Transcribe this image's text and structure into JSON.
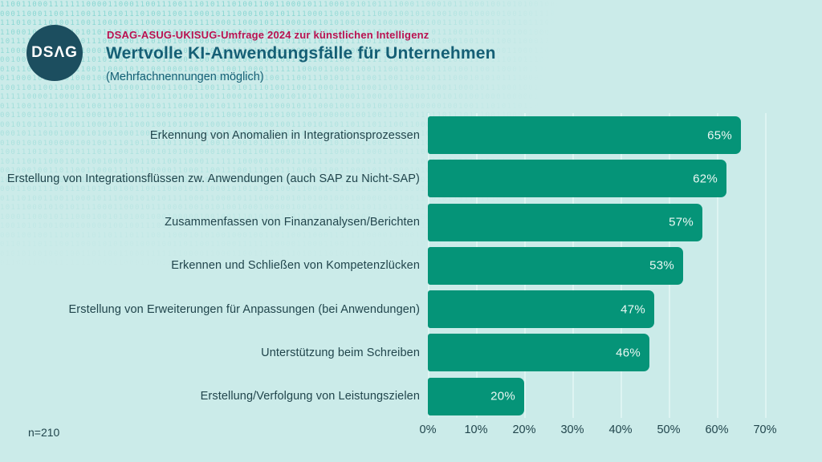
{
  "logo": {
    "text": "DSΛG"
  },
  "header": {
    "kicker": "DSAG-ASUG-UKISUG-Umfrage 2024 zur künstlichen Intelligenz",
    "title": "Wertvolle KI-Anwendungsfälle für Unternehmen",
    "subtitle": "(Mehrfachnennungen möglich)"
  },
  "meta": {
    "sample_size_label": "n=210"
  },
  "colors": {
    "background": "#cbebe9",
    "bar": "#059478",
    "kicker_red": "#b91150",
    "title_teal": "#155f75",
    "text_dark": "#21454c",
    "logo_circle": "#1c4e5f",
    "gridline": "#def4f2",
    "value_label": "#ebf8f4",
    "pattern_digits": "#5ec9c3"
  },
  "chart_data": {
    "type": "bar",
    "orientation": "horizontal",
    "title": "Wertvolle KI-Anwendungsfälle für Unternehmen",
    "subtitle": "(Mehrfachnennungen möglich)",
    "categories": [
      "Erkennung von Anomalien in Integrationsprozessen",
      "Erstellung von Integrationsflüssen zw. Anwendungen (auch SAP zu Nicht-SAP)",
      "Zusammenfassen von Finanzanalysen/Berichten",
      "Erkennen und Schließen von Kompetenzlücken",
      "Erstellung von Erweiterungen für Anpassungen (bei Anwendungen)",
      "Unterstützung beim Schreiben",
      "Erstellung/Verfolgung von Leistungszielen"
    ],
    "values": [
      65,
      62,
      57,
      53,
      47,
      46,
      20
    ],
    "value_suffix": "%",
    "xlabel": "",
    "ylabel": "",
    "xlim": [
      0,
      70
    ],
    "x_ticks": [
      "0%",
      "10%",
      "20%",
      "30%",
      "40%",
      "50%",
      "60%",
      "70%"
    ],
    "grid": true,
    "legend": false
  },
  "background_pattern": {
    "text": "110011000111111100001100011001110011101011101001100110001011100010101011110001100010111000100101010010001000001001001110101101101110111001100010101001000100110"
  }
}
